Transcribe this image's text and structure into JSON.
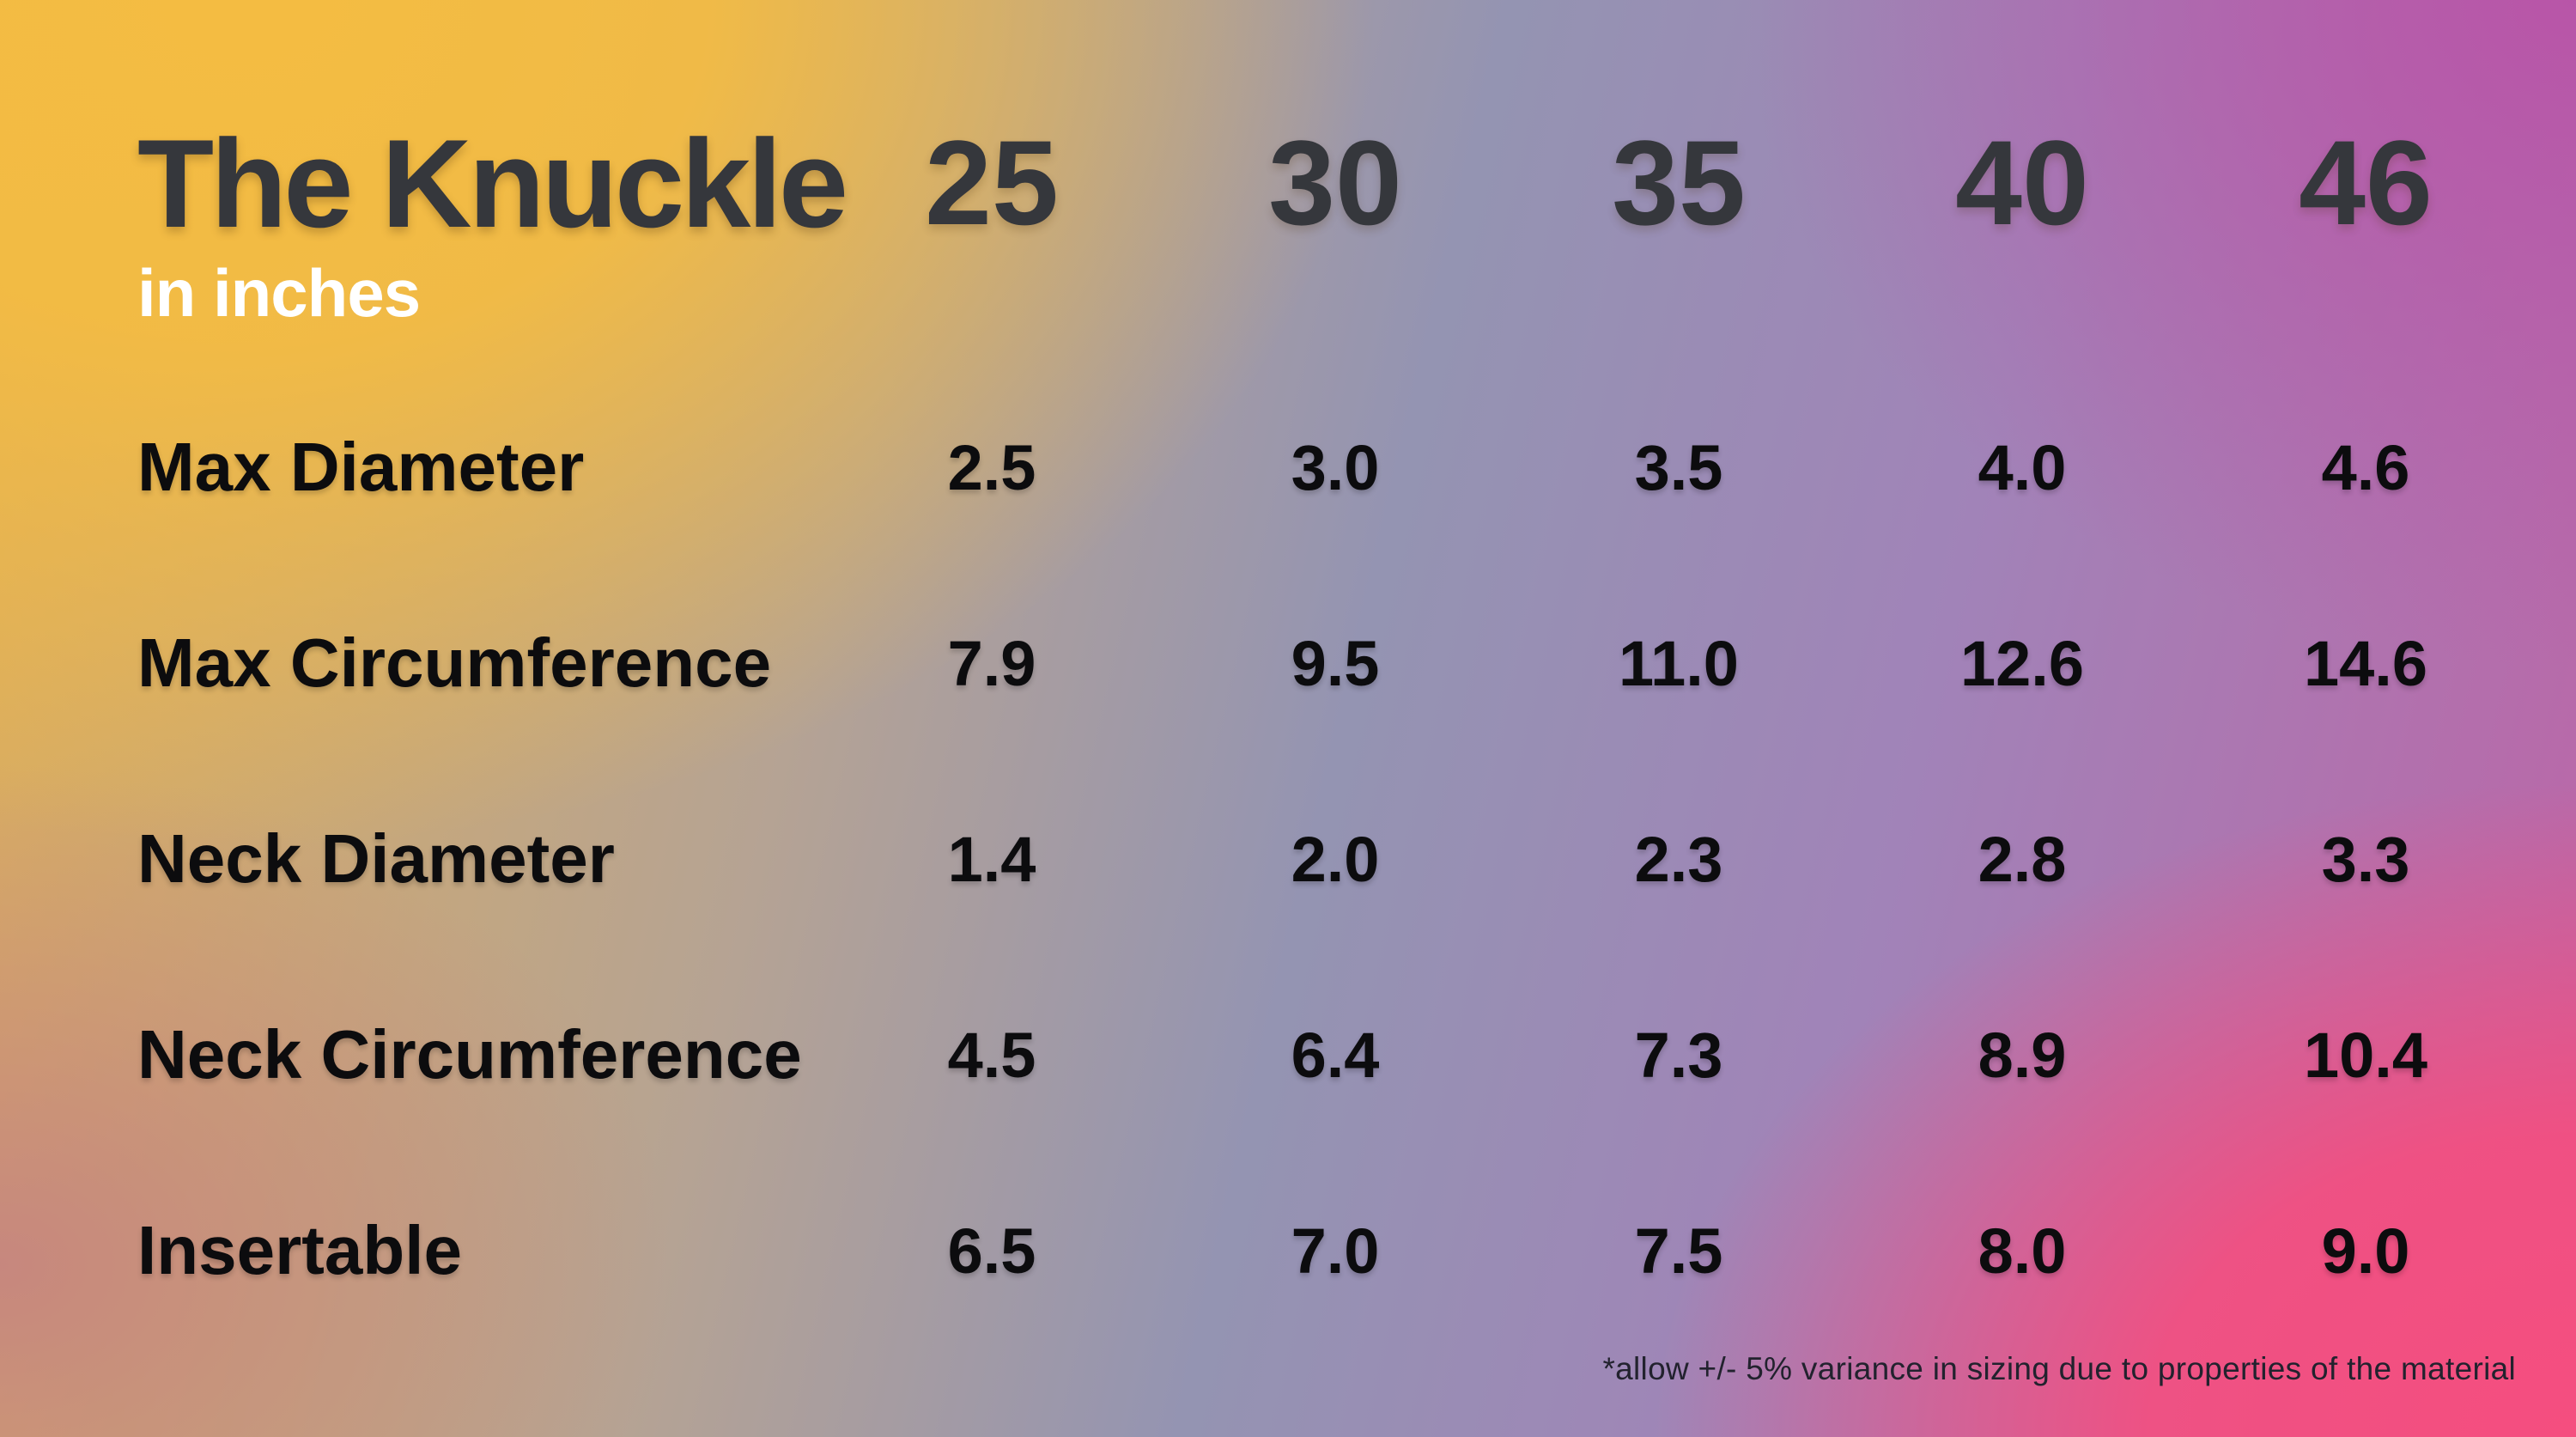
{
  "header": {
    "title": "The Knuckle",
    "subtitle": "in inches"
  },
  "columns": [
    "25",
    "30",
    "35",
    "40",
    "46"
  ],
  "rows": [
    {
      "label": "Max Diameter",
      "values": [
        "2.5",
        "3.0",
        "3.5",
        "4.0",
        "4.6"
      ]
    },
    {
      "label": "Max Circumference",
      "values": [
        "7.9",
        "9.5",
        "11.0",
        "12.6",
        "14.6"
      ]
    },
    {
      "label": "Neck Diameter",
      "values": [
        "1.4",
        "2.0",
        "2.3",
        "2.8",
        "3.3"
      ]
    },
    {
      "label": "Neck Circumference",
      "values": [
        "4.5",
        "6.4",
        "7.3",
        "8.9",
        "10.4"
      ]
    },
    {
      "label": "Insertable",
      "values": [
        "6.5",
        "7.0",
        "7.5",
        "8.0",
        "9.0"
      ]
    }
  ],
  "footnote": "*allow +/- 5% variance in sizing due to properties of the material",
  "colors": {
    "title_text": "#35373c",
    "header_text": "#35373c",
    "body_text": "#0c0c0e",
    "subtitle_text": "#ffffff",
    "gradient_top_left": "#f4bc42",
    "gradient_top_right": "#b855a8",
    "gradient_bottom_left": "#c5857f",
    "gradient_bottom_right": "#f54e7f",
    "gradient_center": "#9494b2"
  },
  "chart_data": {
    "type": "table",
    "title": "The Knuckle",
    "subtitle": "in inches",
    "unit": "inches",
    "columns": [
      "25",
      "30",
      "35",
      "40",
      "46"
    ],
    "row_labels": [
      "Max Diameter",
      "Max Circumference",
      "Neck Diameter",
      "Neck Circumference",
      "Insertable"
    ],
    "values": [
      [
        2.5,
        3.0,
        3.5,
        4.0,
        4.6
      ],
      [
        7.9,
        9.5,
        11.0,
        12.6,
        14.6
      ],
      [
        1.4,
        2.0,
        2.3,
        2.8,
        3.3
      ],
      [
        4.5,
        6.4,
        7.3,
        8.9,
        10.4
      ],
      [
        6.5,
        7.0,
        7.5,
        8.0,
        9.0
      ]
    ],
    "footnote": "*allow +/- 5% variance in sizing due to properties of the material"
  }
}
